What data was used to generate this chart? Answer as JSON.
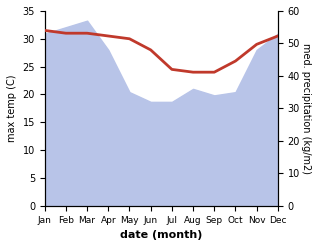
{
  "months": [
    "Jan",
    "Feb",
    "Mar",
    "Apr",
    "May",
    "Jun",
    "Jul",
    "Aug",
    "Sep",
    "Oct",
    "Nov",
    "Dec"
  ],
  "x": [
    0,
    1,
    2,
    3,
    4,
    5,
    6,
    7,
    8,
    9,
    10,
    11
  ],
  "temperature": [
    31.5,
    31.0,
    31.0,
    30.5,
    30.0,
    28.0,
    24.5,
    24.0,
    24.0,
    26.0,
    29.0,
    30.5
  ],
  "precipitation": [
    53.0,
    55.0,
    57.0,
    48.0,
    35.0,
    32.0,
    32.0,
    36.0,
    34.0,
    35.0,
    48.0,
    53.0
  ],
  "temp_color": "#c0392b",
  "precip_fill_color": "#b8c4e8",
  "temp_ylim": [
    0,
    35
  ],
  "precip_ylim": [
    0,
    60
  ],
  "xlabel": "date (month)",
  "ylabel_left": "max temp (C)",
  "ylabel_right": "med. precipitation (kg/m2)",
  "bg_color": "#ffffff",
  "temp_linewidth": 2.0
}
